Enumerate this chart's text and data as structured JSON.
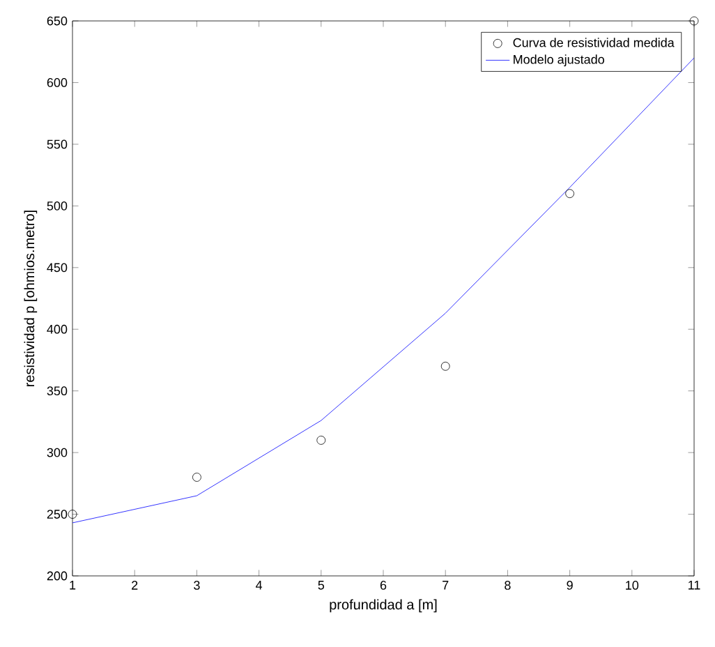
{
  "chart_data": {
    "type": "line",
    "xlabel": "profundidad a [m]",
    "ylabel": "resistividad p [ohmios.metro]",
    "x": [
      1,
      3,
      5,
      7,
      9,
      11
    ],
    "series": [
      {
        "name": "Curva de resistividad medida",
        "type": "scatter",
        "color": "#000000",
        "marker": "circle",
        "values": [
          250,
          280,
          310,
          370,
          510,
          650
        ]
      },
      {
        "name": "Modelo ajustado",
        "color": "#0000ff",
        "marker": "none",
        "line_style": "solid",
        "values": [
          243,
          265,
          326,
          413,
          515,
          620
        ]
      }
    ],
    "xlim": [
      1,
      11
    ],
    "xticks": [
      1,
      2,
      3,
      4,
      5,
      6,
      7,
      8,
      9,
      10,
      11
    ],
    "ylim": [
      200,
      650
    ],
    "yticks": [
      200,
      250,
      300,
      350,
      400,
      450,
      500,
      550,
      600,
      650
    ],
    "grid": false,
    "legend": "top right"
  }
}
